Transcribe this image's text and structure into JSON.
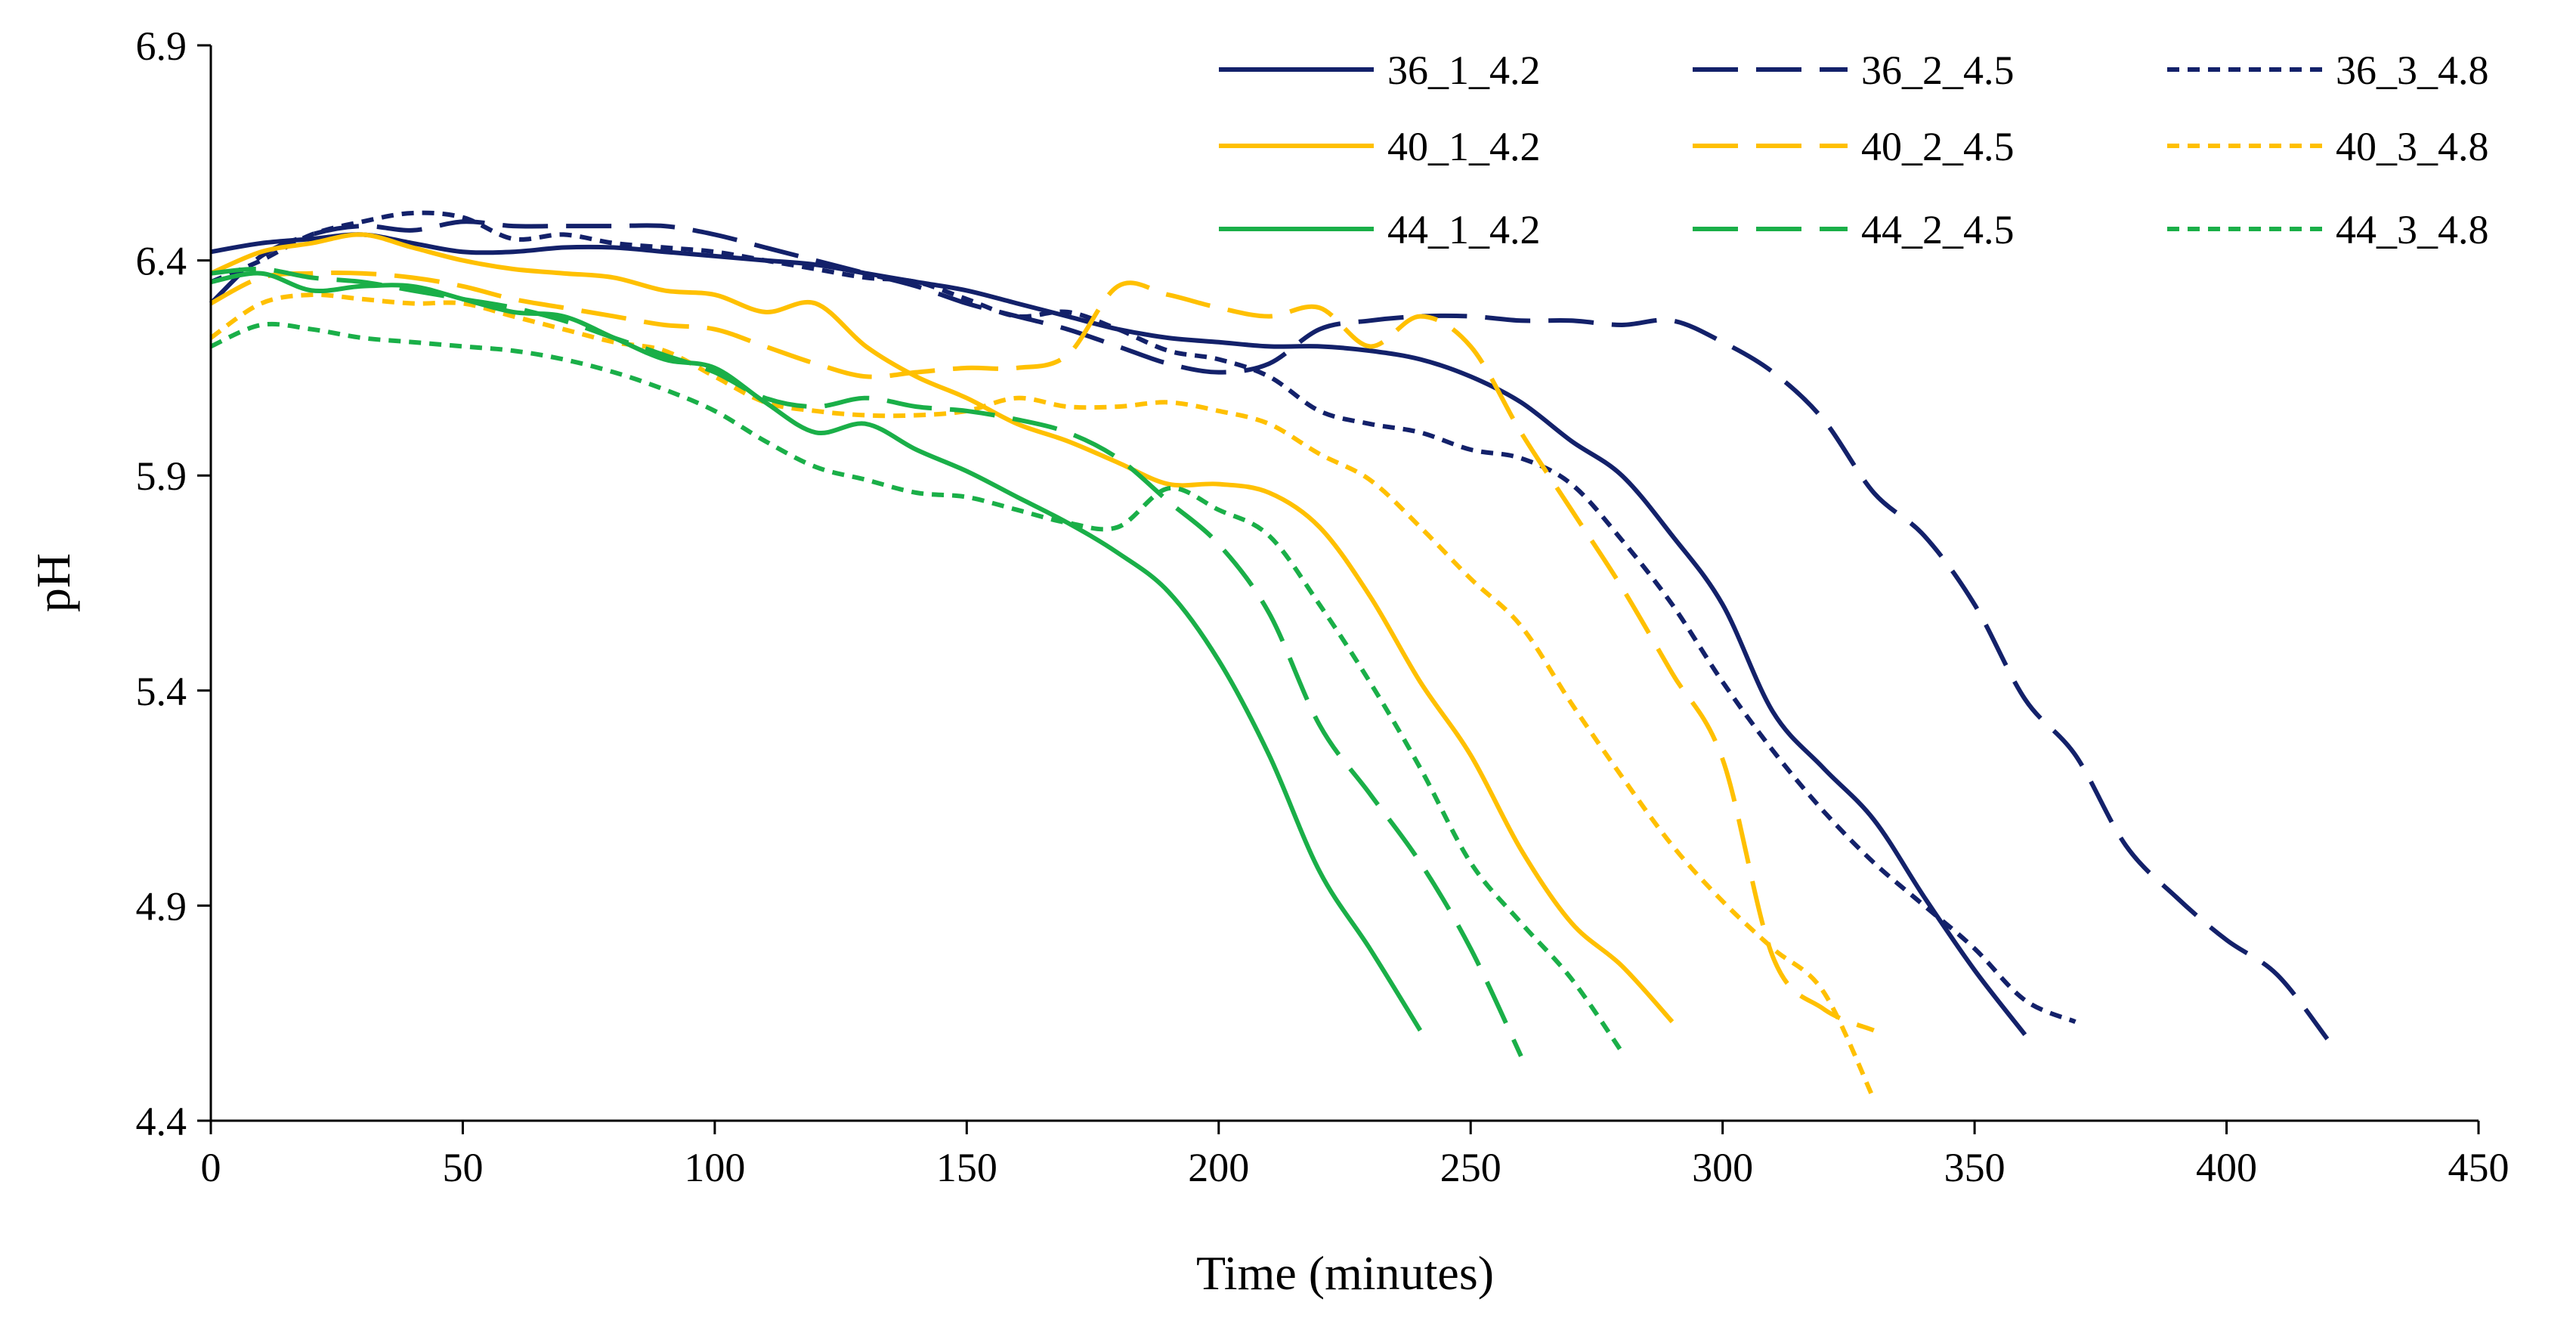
{
  "chart_data": {
    "type": "line",
    "title": "",
    "xlabel": "Time (minutes)",
    "ylabel": "pH",
    "xlim": [
      0,
      450
    ],
    "ylim": [
      4.4,
      6.9
    ],
    "xticks": [
      "0",
      "50",
      "100",
      "150",
      "200",
      "250",
      "300",
      "350",
      "400",
      "450"
    ],
    "yticks": [
      "4.4",
      "4.9",
      "5.4",
      "5.9",
      "6.4",
      "6.9"
    ],
    "grid": false,
    "legend_position": "top-right",
    "colors": {
      "navy": "#13216a",
      "gold": "#ffc000",
      "green": "#1aaf48"
    },
    "series": [
      {
        "name": "36_1_4.2",
        "color": "#13216a",
        "dash": "solid",
        "points": [
          [
            0,
            6.42
          ],
          [
            10,
            6.44
          ],
          [
            20,
            6.45
          ],
          [
            30,
            6.46
          ],
          [
            40,
            6.44
          ],
          [
            50,
            6.42
          ],
          [
            60,
            6.42
          ],
          [
            70,
            6.43
          ],
          [
            80,
            6.43
          ],
          [
            90,
            6.42
          ],
          [
            100,
            6.41
          ],
          [
            110,
            6.4
          ],
          [
            120,
            6.39
          ],
          [
            130,
            6.37
          ],
          [
            140,
            6.35
          ],
          [
            150,
            6.33
          ],
          [
            160,
            6.3
          ],
          [
            170,
            6.27
          ],
          [
            180,
            6.24
          ],
          [
            190,
            6.22
          ],
          [
            200,
            6.21
          ],
          [
            210,
            6.2
          ],
          [
            220,
            6.2
          ],
          [
            230,
            6.19
          ],
          [
            240,
            6.17
          ],
          [
            250,
            6.13
          ],
          [
            260,
            6.07
          ],
          [
            270,
            5.98
          ],
          [
            280,
            5.9
          ],
          [
            290,
            5.76
          ],
          [
            300,
            5.6
          ],
          [
            310,
            5.35
          ],
          [
            320,
            5.22
          ],
          [
            330,
            5.1
          ],
          [
            340,
            4.92
          ],
          [
            350,
            4.75
          ],
          [
            360,
            4.6
          ]
        ]
      },
      {
        "name": "36_2_4.5",
        "color": "#13216a",
        "dash": "longdash",
        "points": [
          [
            0,
            6.3
          ],
          [
            10,
            6.41
          ],
          [
            20,
            6.46
          ],
          [
            30,
            6.48
          ],
          [
            40,
            6.47
          ],
          [
            50,
            6.49
          ],
          [
            60,
            6.48
          ],
          [
            70,
            6.48
          ],
          [
            80,
            6.48
          ],
          [
            90,
            6.48
          ],
          [
            100,
            6.46
          ],
          [
            110,
            6.43
          ],
          [
            120,
            6.4
          ],
          [
            130,
            6.37
          ],
          [
            140,
            6.34
          ],
          [
            150,
            6.3
          ],
          [
            160,
            6.27
          ],
          [
            170,
            6.24
          ],
          [
            180,
            6.2
          ],
          [
            190,
            6.16
          ],
          [
            200,
            6.14
          ],
          [
            210,
            6.16
          ],
          [
            220,
            6.24
          ],
          [
            230,
            6.26
          ],
          [
            240,
            6.27
          ],
          [
            250,
            6.27
          ],
          [
            260,
            6.26
          ],
          [
            270,
            6.26
          ],
          [
            280,
            6.25
          ],
          [
            290,
            6.26
          ],
          [
            300,
            6.21
          ],
          [
            310,
            6.14
          ],
          [
            320,
            6.03
          ],
          [
            330,
            5.86
          ],
          [
            340,
            5.76
          ],
          [
            350,
            5.6
          ],
          [
            360,
            5.38
          ],
          [
            370,
            5.25
          ],
          [
            380,
            5.04
          ],
          [
            390,
            4.92
          ],
          [
            400,
            4.82
          ],
          [
            410,
            4.74
          ],
          [
            420,
            4.59
          ]
        ]
      },
      {
        "name": "36_3_4.8",
        "color": "#13216a",
        "dash": "shortdash",
        "points": [
          [
            0,
            6.35
          ],
          [
            10,
            6.4
          ],
          [
            20,
            6.46
          ],
          [
            30,
            6.49
          ],
          [
            40,
            6.51
          ],
          [
            50,
            6.5
          ],
          [
            60,
            6.45
          ],
          [
            70,
            6.46
          ],
          [
            80,
            6.44
          ],
          [
            90,
            6.43
          ],
          [
            100,
            6.42
          ],
          [
            110,
            6.4
          ],
          [
            120,
            6.38
          ],
          [
            130,
            6.36
          ],
          [
            140,
            6.35
          ],
          [
            150,
            6.31
          ],
          [
            160,
            6.27
          ],
          [
            170,
            6.28
          ],
          [
            180,
            6.24
          ],
          [
            190,
            6.19
          ],
          [
            200,
            6.17
          ],
          [
            210,
            6.13
          ],
          [
            220,
            6.05
          ],
          [
            230,
            6.02
          ],
          [
            240,
            6.0
          ],
          [
            250,
            5.96
          ],
          [
            260,
            5.94
          ],
          [
            270,
            5.88
          ],
          [
            280,
            5.75
          ],
          [
            290,
            5.6
          ],
          [
            300,
            5.42
          ],
          [
            310,
            5.26
          ],
          [
            320,
            5.12
          ],
          [
            330,
            5.0
          ],
          [
            340,
            4.9
          ],
          [
            350,
            4.8
          ],
          [
            360,
            4.68
          ],
          [
            370,
            4.63
          ]
        ]
      },
      {
        "name": "40_1_4.2",
        "color": "#ffc000",
        "dash": "solid",
        "points": [
          [
            0,
            6.37
          ],
          [
            10,
            6.42
          ],
          [
            20,
            6.44
          ],
          [
            30,
            6.46
          ],
          [
            40,
            6.43
          ],
          [
            50,
            6.4
          ],
          [
            60,
            6.38
          ],
          [
            70,
            6.37
          ],
          [
            80,
            6.36
          ],
          [
            90,
            6.33
          ],
          [
            100,
            6.32
          ],
          [
            110,
            6.28
          ],
          [
            120,
            6.3
          ],
          [
            130,
            6.2
          ],
          [
            140,
            6.13
          ],
          [
            150,
            6.08
          ],
          [
            160,
            6.02
          ],
          [
            170,
            5.98
          ],
          [
            180,
            5.93
          ],
          [
            190,
            5.88
          ],
          [
            200,
            5.88
          ],
          [
            210,
            5.86
          ],
          [
            220,
            5.78
          ],
          [
            230,
            5.62
          ],
          [
            240,
            5.42
          ],
          [
            250,
            5.25
          ],
          [
            260,
            5.03
          ],
          [
            270,
            4.86
          ],
          [
            280,
            4.76
          ],
          [
            290,
            4.63
          ]
        ]
      },
      {
        "name": "40_2_4.5",
        "color": "#ffc000",
        "dash": "longdash",
        "points": [
          [
            0,
            6.3
          ],
          [
            10,
            6.36
          ],
          [
            20,
            6.37
          ],
          [
            30,
            6.37
          ],
          [
            40,
            6.36
          ],
          [
            50,
            6.34
          ],
          [
            60,
            6.31
          ],
          [
            70,
            6.29
          ],
          [
            80,
            6.27
          ],
          [
            90,
            6.25
          ],
          [
            100,
            6.24
          ],
          [
            110,
            6.2
          ],
          [
            120,
            6.16
          ],
          [
            130,
            6.13
          ],
          [
            140,
            6.14
          ],
          [
            150,
            6.15
          ],
          [
            160,
            6.15
          ],
          [
            170,
            6.18
          ],
          [
            180,
            6.34
          ],
          [
            190,
            6.32
          ],
          [
            200,
            6.29
          ],
          [
            210,
            6.27
          ],
          [
            220,
            6.29
          ],
          [
            230,
            6.2
          ],
          [
            240,
            6.27
          ],
          [
            250,
            6.2
          ],
          [
            260,
            6.0
          ],
          [
            270,
            5.82
          ],
          [
            280,
            5.64
          ],
          [
            290,
            5.44
          ],
          [
            300,
            5.24
          ],
          [
            310,
            4.78
          ],
          [
            320,
            4.66
          ],
          [
            330,
            4.61
          ]
        ]
      },
      {
        "name": "40_3_4.8",
        "color": "#ffc000",
        "dash": "shortdash",
        "points": [
          [
            0,
            6.22
          ],
          [
            10,
            6.3
          ],
          [
            20,
            6.32
          ],
          [
            30,
            6.31
          ],
          [
            40,
            6.3
          ],
          [
            50,
            6.3
          ],
          [
            60,
            6.27
          ],
          [
            70,
            6.24
          ],
          [
            80,
            6.21
          ],
          [
            90,
            6.19
          ],
          [
            100,
            6.13
          ],
          [
            110,
            6.07
          ],
          [
            120,
            6.05
          ],
          [
            130,
            6.04
          ],
          [
            140,
            6.04
          ],
          [
            150,
            6.05
          ],
          [
            160,
            6.08
          ],
          [
            170,
            6.06
          ],
          [
            180,
            6.06
          ],
          [
            190,
            6.07
          ],
          [
            200,
            6.05
          ],
          [
            210,
            6.02
          ],
          [
            220,
            5.95
          ],
          [
            230,
            5.89
          ],
          [
            240,
            5.78
          ],
          [
            250,
            5.66
          ],
          [
            260,
            5.55
          ],
          [
            270,
            5.37
          ],
          [
            280,
            5.2
          ],
          [
            290,
            5.04
          ],
          [
            300,
            4.91
          ],
          [
            310,
            4.8
          ],
          [
            320,
            4.7
          ],
          [
            330,
            4.45
          ]
        ]
      },
      {
        "name": "44_1_4.2",
        "color": "#1aaf48",
        "dash": "solid",
        "points": [
          [
            0,
            6.35
          ],
          [
            10,
            6.37
          ],
          [
            20,
            6.33
          ],
          [
            30,
            6.34
          ],
          [
            40,
            6.34
          ],
          [
            50,
            6.31
          ],
          [
            60,
            6.28
          ],
          [
            70,
            6.27
          ],
          [
            80,
            6.22
          ],
          [
            90,
            6.17
          ],
          [
            100,
            6.15
          ],
          [
            110,
            6.07
          ],
          [
            120,
            6.0
          ],
          [
            130,
            6.02
          ],
          [
            140,
            5.96
          ],
          [
            150,
            5.91
          ],
          [
            160,
            5.85
          ],
          [
            170,
            5.79
          ],
          [
            180,
            5.72
          ],
          [
            190,
            5.63
          ],
          [
            200,
            5.47
          ],
          [
            210,
            5.25
          ],
          [
            220,
            4.98
          ],
          [
            230,
            4.8
          ],
          [
            240,
            4.61
          ]
        ]
      },
      {
        "name": "44_2_4.5",
        "color": "#1aaf48",
        "dash": "longdash",
        "points": [
          [
            0,
            6.37
          ],
          [
            10,
            6.38
          ],
          [
            20,
            6.36
          ],
          [
            30,
            6.35
          ],
          [
            40,
            6.33
          ],
          [
            50,
            6.31
          ],
          [
            60,
            6.29
          ],
          [
            70,
            6.26
          ],
          [
            80,
            6.22
          ],
          [
            90,
            6.18
          ],
          [
            100,
            6.14
          ],
          [
            110,
            6.08
          ],
          [
            120,
            6.06
          ],
          [
            130,
            6.08
          ],
          [
            140,
            6.06
          ],
          [
            150,
            6.05
          ],
          [
            160,
            6.03
          ],
          [
            170,
            6.0
          ],
          [
            180,
            5.94
          ],
          [
            190,
            5.84
          ],
          [
            200,
            5.74
          ],
          [
            210,
            5.58
          ],
          [
            220,
            5.32
          ],
          [
            230,
            5.16
          ],
          [
            240,
            5.0
          ],
          [
            250,
            4.8
          ],
          [
            260,
            4.55
          ]
        ]
      },
      {
        "name": "44_3_4.8",
        "color": "#1aaf48",
        "dash": "shortdash",
        "points": [
          [
            0,
            6.2
          ],
          [
            10,
            6.25
          ],
          [
            20,
            6.24
          ],
          [
            30,
            6.22
          ],
          [
            40,
            6.21
          ],
          [
            50,
            6.2
          ],
          [
            60,
            6.19
          ],
          [
            70,
            6.17
          ],
          [
            80,
            6.14
          ],
          [
            90,
            6.1
          ],
          [
            100,
            6.05
          ],
          [
            110,
            5.98
          ],
          [
            120,
            5.92
          ],
          [
            130,
            5.89
          ],
          [
            140,
            5.86
          ],
          [
            150,
            5.85
          ],
          [
            160,
            5.82
          ],
          [
            170,
            5.79
          ],
          [
            180,
            5.78
          ],
          [
            190,
            5.87
          ],
          [
            200,
            5.82
          ],
          [
            210,
            5.76
          ],
          [
            220,
            5.6
          ],
          [
            230,
            5.42
          ],
          [
            240,
            5.22
          ],
          [
            250,
            5.0
          ],
          [
            260,
            4.86
          ],
          [
            270,
            4.73
          ],
          [
            280,
            4.56
          ]
        ]
      }
    ]
  }
}
